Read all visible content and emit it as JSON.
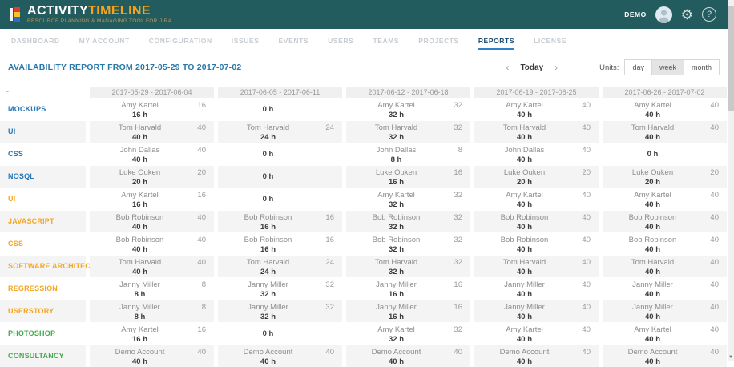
{
  "app": {
    "logo_primary": "ACTIVITY",
    "logo_secondary": "TIMELINE",
    "tagline": "RESOURCE PLANNING & MANAGING TOOL FOR JIRA",
    "user_label": "DEMO"
  },
  "nav": {
    "items": [
      {
        "label": "DASHBOARD",
        "active": false
      },
      {
        "label": "MY ACCOUNT",
        "active": false
      },
      {
        "label": "CONFIGURATION",
        "active": false
      },
      {
        "label": "ISSUES",
        "active": false
      },
      {
        "label": "EVENTS",
        "active": false
      },
      {
        "label": "USERS",
        "active": false
      },
      {
        "label": "TEAMS",
        "active": false
      },
      {
        "label": "PROJECTS",
        "active": false
      },
      {
        "label": "REPORTS",
        "active": true
      },
      {
        "label": "LICENSE",
        "active": false
      }
    ]
  },
  "report": {
    "title": "AVAILABILITY REPORT FROM 2017-05-29 TO 2017-07-02",
    "prev_label": "‹",
    "today_label": "Today",
    "next_label": "›",
    "units_label": "Units:",
    "units": [
      {
        "label": "day",
        "selected": false
      },
      {
        "label": "week",
        "selected": true
      },
      {
        "label": "month",
        "selected": false
      }
    ]
  },
  "colors": {
    "topbar_teal": "#235c5e",
    "logo_orange": "#f7a21b",
    "active_nav_blue": "#1c4e74",
    "active_nav_underline": "#2c82c9",
    "title_blue": "#2878a9",
    "label_blue": "#2878b5",
    "label_orange": "#f5a623",
    "label_green": "#44a94d",
    "row_stripe": "#f4f4f4"
  },
  "table": {
    "corner_label": "-",
    "columns": [
      "2017-05-29 - 2017-06-04",
      "2017-06-05 - 2017-06-11",
      "2017-06-12 - 2017-06-18",
      "2017-06-19 - 2017-06-25",
      "2017-06-26 - 2017-07-02"
    ],
    "rows": [
      {
        "label": "MOCKUPS",
        "color": "blue",
        "cells": [
          {
            "name": "Amy Kartel",
            "value": 16,
            "total": "16 h"
          },
          {
            "total": "0 h"
          },
          {
            "name": "Amy Kartel",
            "value": 32,
            "total": "32 h"
          },
          {
            "name": "Amy Kartel",
            "value": 40,
            "total": "40 h"
          },
          {
            "name": "Amy Kartel",
            "value": 40,
            "total": "40 h"
          }
        ]
      },
      {
        "label": "UI",
        "color": "blue",
        "cells": [
          {
            "name": "Tom Harvald",
            "value": 40,
            "total": "40 h"
          },
          {
            "name": "Tom Harvald",
            "value": 24,
            "total": "24 h"
          },
          {
            "name": "Tom Harvald",
            "value": 32,
            "total": "32 h"
          },
          {
            "name": "Tom Harvald",
            "value": 40,
            "total": "40 h"
          },
          {
            "name": "Tom Harvald",
            "value": 40,
            "total": "40 h"
          }
        ]
      },
      {
        "label": "CSS",
        "color": "blue",
        "cells": [
          {
            "name": "John Dallas",
            "value": 40,
            "total": "40 h"
          },
          {
            "total": "0 h"
          },
          {
            "name": "John Dallas",
            "value": 8,
            "total": "8 h"
          },
          {
            "name": "John Dallas",
            "value": 40,
            "total": "40 h"
          },
          {
            "total": "0 h"
          }
        ]
      },
      {
        "label": "NOSQL",
        "color": "blue",
        "cells": [
          {
            "name": "Luke Ouken",
            "value": 20,
            "total": "20 h"
          },
          {
            "total": "0 h"
          },
          {
            "name": "Luke Ouken",
            "value": 16,
            "total": "16 h"
          },
          {
            "name": "Luke Ouken",
            "value": 20,
            "total": "20 h"
          },
          {
            "name": "Luke Ouken",
            "value": 20,
            "total": "20 h"
          }
        ]
      },
      {
        "label": "UI",
        "color": "orange",
        "cells": [
          {
            "name": "Amy Kartel",
            "value": 16,
            "total": "16 h"
          },
          {
            "total": "0 h"
          },
          {
            "name": "Amy Kartel",
            "value": 32,
            "total": "32 h"
          },
          {
            "name": "Amy Kartel",
            "value": 40,
            "total": "40 h"
          },
          {
            "name": "Amy Kartel",
            "value": 40,
            "total": "40 h"
          }
        ]
      },
      {
        "label": "JAVASCRIPT",
        "color": "orange",
        "cells": [
          {
            "name": "Bob Robinson",
            "value": 40,
            "total": "40 h"
          },
          {
            "name": "Bob Robinson",
            "value": 16,
            "total": "16 h"
          },
          {
            "name": "Bob Robinson",
            "value": 32,
            "total": "32 h"
          },
          {
            "name": "Bob Robinson",
            "value": 40,
            "total": "40 h"
          },
          {
            "name": "Bob Robinson",
            "value": 40,
            "total": "40 h"
          }
        ]
      },
      {
        "label": "CSS",
        "color": "orange",
        "cells": [
          {
            "name": "Bob Robinson",
            "value": 40,
            "total": "40 h"
          },
          {
            "name": "Bob Robinson",
            "value": 16,
            "total": "16 h"
          },
          {
            "name": "Bob Robinson",
            "value": 32,
            "total": "32 h"
          },
          {
            "name": "Bob Robinson",
            "value": 40,
            "total": "40 h"
          },
          {
            "name": "Bob Robinson",
            "value": 40,
            "total": "40 h"
          }
        ]
      },
      {
        "label": "SOFTWARE ARCHITECTURE",
        "color": "orange",
        "cells": [
          {
            "name": "Tom Harvald",
            "value": 40,
            "total": "40 h"
          },
          {
            "name": "Tom Harvald",
            "value": 24,
            "total": "24 h"
          },
          {
            "name": "Tom Harvald",
            "value": 32,
            "total": "32 h"
          },
          {
            "name": "Tom Harvald",
            "value": 40,
            "total": "40 h"
          },
          {
            "name": "Tom Harvald",
            "value": 40,
            "total": "40 h"
          }
        ]
      },
      {
        "label": "REGRESSION",
        "color": "orange",
        "cells": [
          {
            "name": "Janny Miller",
            "value": 8,
            "total": "8 h"
          },
          {
            "name": "Janny Miller",
            "value": 32,
            "total": "32 h"
          },
          {
            "name": "Janny Miller",
            "value": 16,
            "total": "16 h"
          },
          {
            "name": "Janny Miller",
            "value": 40,
            "total": "40 h"
          },
          {
            "name": "Janny Miller",
            "value": 40,
            "total": "40 h"
          }
        ]
      },
      {
        "label": "USERSTORY",
        "color": "orange",
        "cells": [
          {
            "name": "Janny Miller",
            "value": 8,
            "total": "8 h"
          },
          {
            "name": "Janny Miller",
            "value": 32,
            "total": "32 h"
          },
          {
            "name": "Janny Miller",
            "value": 16,
            "total": "16 h"
          },
          {
            "name": "Janny Miller",
            "value": 40,
            "total": "40 h"
          },
          {
            "name": "Janny Miller",
            "value": 40,
            "total": "40 h"
          }
        ]
      },
      {
        "label": "PHOTOSHOP",
        "color": "green",
        "cells": [
          {
            "name": "Amy Kartel",
            "value": 16,
            "total": "16 h"
          },
          {
            "total": "0 h"
          },
          {
            "name": "Amy Kartel",
            "value": 32,
            "total": "32 h"
          },
          {
            "name": "Amy Kartel",
            "value": 40,
            "total": "40 h"
          },
          {
            "name": "Amy Kartel",
            "value": 40,
            "total": "40 h"
          }
        ]
      },
      {
        "label": "CONSULTANCY",
        "color": "green",
        "cells": [
          {
            "name": "Demo Account",
            "value": 40,
            "total": "40 h"
          },
          {
            "name": "Demo Account",
            "value": 40,
            "total": "40 h"
          },
          {
            "name": "Demo Account",
            "value": 40,
            "total": "40 h"
          },
          {
            "name": "Demo Account",
            "value": 40,
            "total": "40 h"
          },
          {
            "name": "Demo Account",
            "value": 40,
            "total": "40 h"
          }
        ]
      }
    ]
  }
}
